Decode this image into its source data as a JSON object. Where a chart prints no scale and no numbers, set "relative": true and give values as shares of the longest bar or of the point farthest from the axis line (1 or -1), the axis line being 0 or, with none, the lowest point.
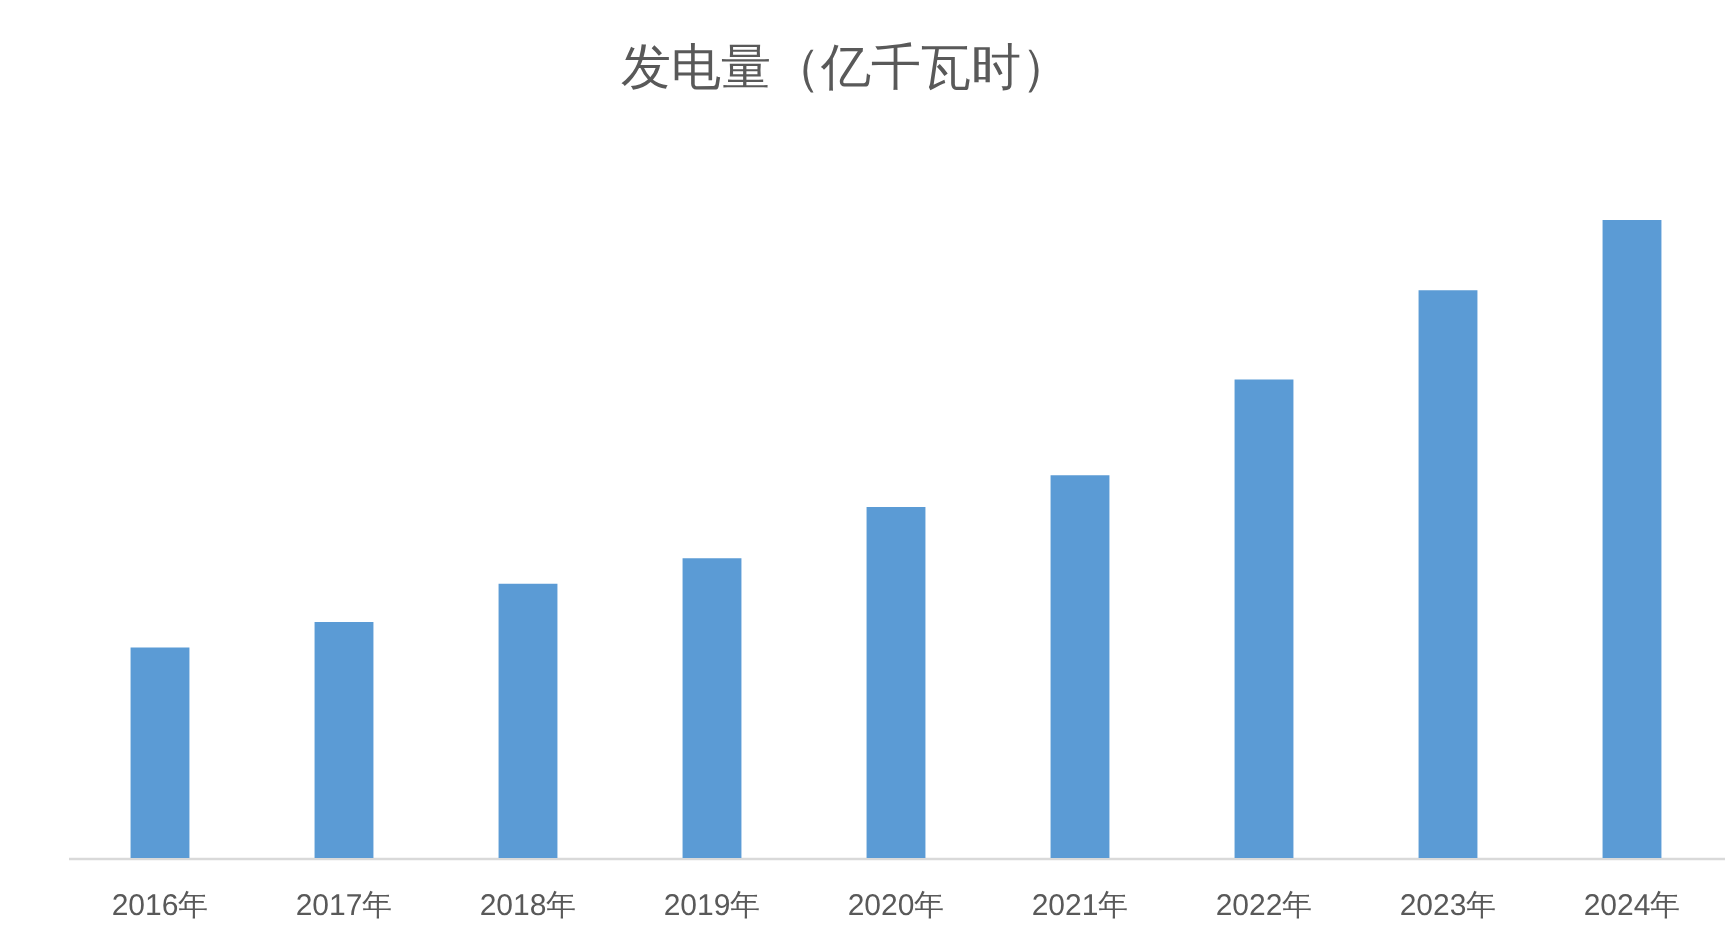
{
  "chart_data": {
    "type": "bar",
    "title": "发电量（亿千瓦时）",
    "categories": [
      "2016年",
      "2017年",
      "2018年",
      "2019年",
      "2020年",
      "2021年",
      "2022年",
      "2023年",
      "2024年"
    ],
    "values": [
      0.33,
      0.37,
      0.43,
      0.47,
      0.55,
      0.6,
      0.75,
      0.89,
      1
    ],
    "color": "#5b9bd5",
    "relative": true
  }
}
